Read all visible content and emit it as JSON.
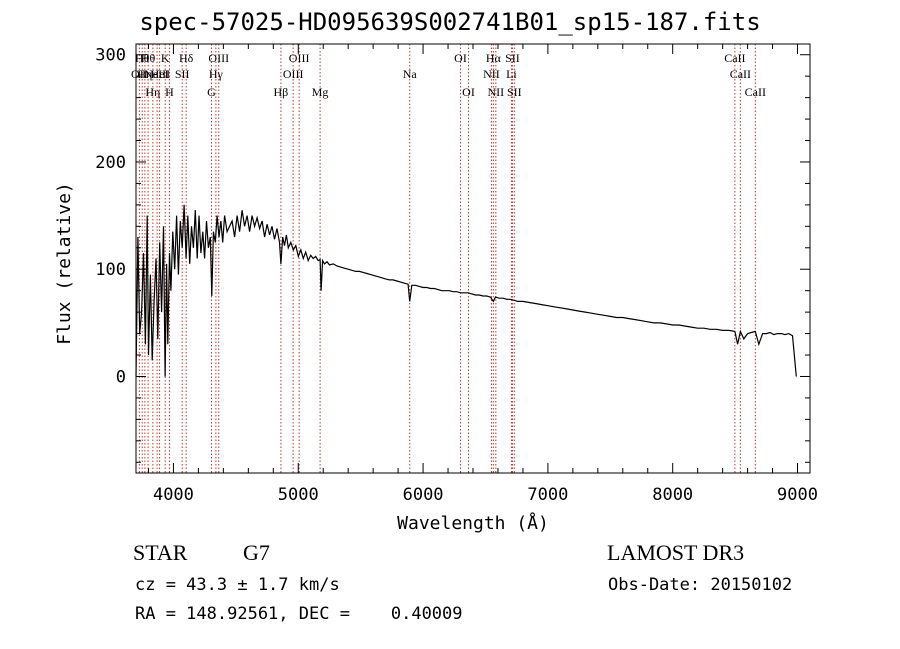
{
  "title": "spec-57025-HD095639S002741B01_sp15-187.fits",
  "info": {
    "object_type": "STAR",
    "subclass": "G7",
    "survey": "LAMOST DR3",
    "redshift_text": "cz = 43.3 ± 1.7 km/s",
    "obs_date_text": "Obs-Date: 20150102",
    "radec_text": "RA = 148.92561, DEC =    0.40009"
  },
  "colors": {
    "line": "#000000",
    "marker": "#c0392b",
    "axis": "#000000",
    "background": "#ffffff"
  },
  "chart_data": {
    "type": "line",
    "title": "spec-57025-HD095639S002741B01_sp15-187.fits",
    "xlabel": "Wavelength (Å)",
    "ylabel": "Flux (relative)",
    "xlim": [
      3700,
      9100
    ],
    "ylim": [
      -90,
      310
    ],
    "xticks": [
      4000,
      5000,
      6000,
      7000,
      8000,
      9000
    ],
    "yticks": [
      0,
      100,
      200,
      300
    ],
    "x_minor_step": 200,
    "y_minor_step": 20,
    "series": [
      {
        "name": "flux",
        "x": [
          3700,
          3715,
          3730,
          3745,
          3760,
          3775,
          3790,
          3800,
          3815,
          3830,
          3845,
          3860,
          3875,
          3890,
          3905,
          3920,
          3933,
          3945,
          3955,
          3968,
          3980,
          3995,
          4010,
          4025,
          4040,
          4055,
          4070,
          4085,
          4101,
          4115,
          4130,
          4145,
          4160,
          4175,
          4190,
          4205,
          4220,
          4235,
          4250,
          4265,
          4280,
          4295,
          4307,
          4320,
          4335,
          4350,
          4365,
          4380,
          4395,
          4410,
          4430,
          4450,
          4470,
          4490,
          4510,
          4530,
          4550,
          4570,
          4590,
          4610,
          4630,
          4650,
          4670,
          4690,
          4710,
          4730,
          4750,
          4770,
          4790,
          4810,
          4830,
          4850,
          4861,
          4875,
          4890,
          4905,
          4920,
          4940,
          4960,
          4980,
          5000,
          5020,
          5040,
          5060,
          5080,
          5100,
          5120,
          5140,
          5160,
          5175,
          5183,
          5195,
          5210,
          5230,
          5250,
          5280,
          5310,
          5340,
          5370,
          5400,
          5430,
          5460,
          5490,
          5520,
          5550,
          5580,
          5610,
          5640,
          5670,
          5700,
          5730,
          5760,
          5790,
          5820,
          5850,
          5880,
          5893,
          5910,
          5940,
          5970,
          6000,
          6030,
          6060,
          6090,
          6120,
          6150,
          6180,
          6210,
          6240,
          6270,
          6300,
          6330,
          6360,
          6390,
          6420,
          6450,
          6480,
          6510,
          6540,
          6563,
          6580,
          6610,
          6640,
          6670,
          6700,
          6730,
          6760,
          6800,
          6850,
          6900,
          6950,
          7000,
          7050,
          7100,
          7150,
          7200,
          7250,
          7300,
          7350,
          7400,
          7450,
          7500,
          7550,
          7600,
          7650,
          7700,
          7750,
          7800,
          7850,
          7900,
          7950,
          8000,
          8050,
          8100,
          8150,
          8200,
          8250,
          8300,
          8350,
          8400,
          8450,
          8498,
          8520,
          8542,
          8570,
          8600,
          8630,
          8662,
          8690,
          8720,
          8750,
          8780,
          8810,
          8840,
          8870,
          8900,
          8930,
          8960,
          8990
        ],
        "y": [
          0,
          130,
          40,
          60,
          115,
          30,
          150,
          20,
          95,
          15,
          70,
          110,
          35,
          125,
          60,
          140,
          0,
          105,
          30,
          115,
          80,
          135,
          100,
          150,
          95,
          145,
          120,
          160,
          110,
          150,
          105,
          140,
          120,
          155,
          110,
          150,
          115,
          135,
          110,
          145,
          120,
          130,
          75,
          135,
          125,
          150,
          130,
          145,
          125,
          150,
          135,
          140,
          145,
          130,
          150,
          135,
          155,
          140,
          150,
          135,
          150,
          140,
          148,
          138,
          145,
          130,
          142,
          132,
          140,
          128,
          138,
          125,
          105,
          130,
          122,
          132,
          120,
          125,
          118,
          122,
          112,
          118,
          110,
          116,
          108,
          113,
          110,
          112,
          108,
          109,
          80,
          108,
          105,
          107,
          104,
          105,
          103,
          102,
          101,
          100,
          99,
          98,
          98,
          97,
          96,
          95,
          94,
          93,
          92,
          91,
          90,
          90,
          89,
          88,
          87,
          86,
          70,
          85,
          85,
          84,
          83,
          83,
          82,
          82,
          81,
          80,
          80,
          80,
          79,
          79,
          78,
          78,
          78,
          77,
          76,
          76,
          75,
          75,
          74,
          70,
          74,
          73,
          73,
          72,
          72,
          71,
          70,
          70,
          69,
          68,
          67,
          66,
          65,
          64,
          63,
          62,
          61,
          60,
          59,
          58,
          57,
          56,
          55,
          55,
          54,
          53,
          52,
          51,
          50,
          50,
          49,
          48,
          48,
          47,
          46,
          45,
          45,
          44,
          44,
          43,
          43,
          42,
          30,
          42,
          35,
          40,
          41,
          42,
          30,
          40,
          40,
          41,
          39,
          40,
          40,
          39,
          40,
          38,
          0
        ]
      }
    ],
    "line_markers": [
      {
        "wavelength": 3727,
        "label": "OII",
        "row": 2
      },
      {
        "wavelength": 3750,
        "label": "Hθ",
        "row": 1
      },
      {
        "wavelength": 3771,
        "label": "Hη",
        "row": 2
      },
      {
        "wavelength": 3797,
        "label": "Hθ",
        "row": 1
      },
      {
        "wavelength": 3835,
        "label": "Hη",
        "row": 3
      },
      {
        "wavelength": 3869,
        "label": "NeIII",
        "row": 2
      },
      {
        "wavelength": 3889,
        "label": "HeI",
        "row": 2
      },
      {
        "wavelength": 3934,
        "label": "K",
        "row": 1
      },
      {
        "wavelength": 3968,
        "label": "H",
        "row": 3
      },
      {
        "wavelength": 4070,
        "label": "SII",
        "row": 2
      },
      {
        "wavelength": 4102,
        "label": "Hδ",
        "row": 1
      },
      {
        "wavelength": 4305,
        "label": "G",
        "row": 3
      },
      {
        "wavelength": 4340,
        "label": "Hγ",
        "row": 2
      },
      {
        "wavelength": 4363,
        "label": "OIII",
        "row": 1
      },
      {
        "wavelength": 4861,
        "label": "Hβ",
        "row": 3
      },
      {
        "wavelength": 4959,
        "label": "OIII",
        "row": 2
      },
      {
        "wavelength": 5007,
        "label": "OIII",
        "row": 1
      },
      {
        "wavelength": 5175,
        "label": "Mg",
        "row": 3
      },
      {
        "wavelength": 5893,
        "label": "Na",
        "row": 2
      },
      {
        "wavelength": 6300,
        "label": "OI",
        "row": 1
      },
      {
        "wavelength": 6364,
        "label": "OI",
        "row": 3
      },
      {
        "wavelength": 6548,
        "label": "NII",
        "row": 2
      },
      {
        "wavelength": 6563,
        "label": "Hα",
        "row": 1
      },
      {
        "wavelength": 6583,
        "label": "NII",
        "row": 3
      },
      {
        "wavelength": 6708,
        "label": "Li",
        "row": 2
      },
      {
        "wavelength": 6716,
        "label": "SII",
        "row": 1
      },
      {
        "wavelength": 6731,
        "label": "SII",
        "row": 3
      },
      {
        "wavelength": 8498,
        "label": "CaII",
        "row": 1
      },
      {
        "wavelength": 8542,
        "label": "CaII",
        "row": 2
      },
      {
        "wavelength": 8662,
        "label": "CaII",
        "row": 3
      }
    ]
  }
}
